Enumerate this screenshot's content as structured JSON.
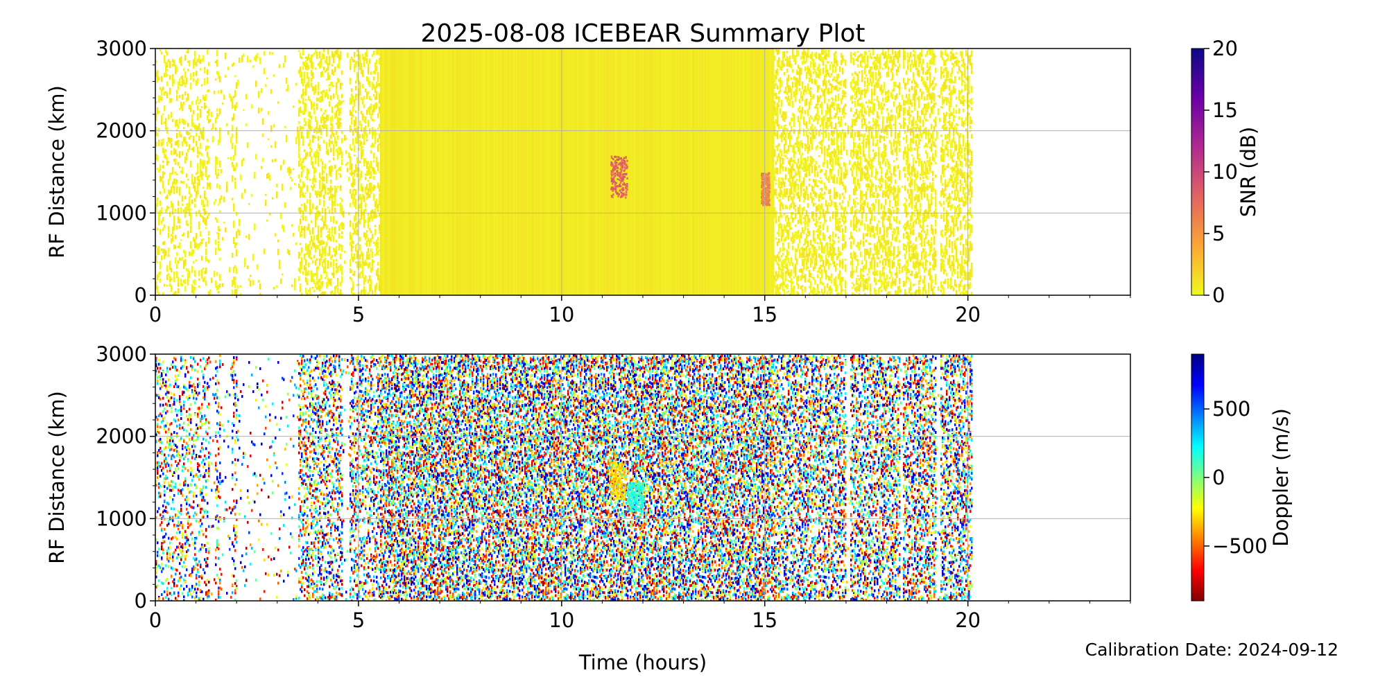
{
  "title": "2025-08-08 ICEBEAR Summary Plot",
  "calibration_text": "Calibration Date: 2024-09-12",
  "chart_data": [
    {
      "type": "scatter",
      "panel": "snr",
      "title": "2025-08-08 ICEBEAR Summary Plot",
      "xlabel": "Time (hours)",
      "ylabel": "RF Distance (km)",
      "xlim": [
        0,
        24
      ],
      "ylim": [
        0,
        3000
      ],
      "xticks": [
        0,
        5,
        10,
        15,
        20
      ],
      "xtick_labels": [
        "0",
        "5",
        "10",
        "15",
        "20"
      ],
      "yticks": [
        0,
        1000,
        2000,
        3000
      ],
      "ytick_labels": [
        "0",
        "1000",
        "2000",
        "3000"
      ],
      "grid": true,
      "data_time_range": [
        0,
        20.1
      ],
      "sparse_intervals": [
        [
          1.3,
          1.45
        ],
        [
          1.6,
          1.85
        ],
        [
          2.0,
          3.5
        ],
        [
          4.6,
          4.75
        ],
        [
          17.0,
          17.1
        ],
        [
          18.3,
          18.4
        ],
        [
          19.2,
          19.3
        ]
      ],
      "colorbar": {
        "label": "SNR (dB)",
        "range": [
          0,
          20
        ],
        "ticks": [
          0,
          5,
          10,
          15,
          20
        ],
        "tick_labels": [
          "0",
          "5",
          "10",
          "15",
          "20"
        ],
        "colormap": "plasma_r",
        "colors": [
          "#f0f921",
          "#fca636",
          "#e16462",
          "#b12a90",
          "#6a00a8",
          "#0d0887"
        ]
      },
      "dominant_value": 0,
      "features": [
        {
          "x": [
            11.2,
            11.6
          ],
          "y": [
            1200,
            1700
          ],
          "value": 8
        },
        {
          "x": [
            14.9,
            15.1
          ],
          "y": [
            1100,
            1500
          ],
          "value": 6
        }
      ]
    },
    {
      "type": "scatter",
      "panel": "doppler",
      "xlabel": "Time (hours)",
      "ylabel": "RF Distance (km)",
      "xlim": [
        0,
        24
      ],
      "ylim": [
        0,
        3000
      ],
      "xticks": [
        0,
        5,
        10,
        15,
        20
      ],
      "xtick_labels": [
        "0",
        "5",
        "10",
        "15",
        "20"
      ],
      "yticks": [
        0,
        1000,
        2000,
        3000
      ],
      "ytick_labels": [
        "0",
        "1000",
        "2000",
        "3000"
      ],
      "grid": true,
      "data_time_range": [
        0,
        20.1
      ],
      "colorbar": {
        "label": "Doppler (m/s)",
        "range": [
          -900,
          900
        ],
        "ticks": [
          -500,
          0,
          500
        ],
        "tick_labels": [
          "−500",
          "0",
          "500"
        ],
        "colormap": "jet_r",
        "colors": [
          "#7f0000",
          "#ff0000",
          "#ff8000",
          "#ffff00",
          "#80ff80",
          "#00ffff",
          "#0080ff",
          "#0000ff",
          "#00007f"
        ]
      },
      "features": [
        {
          "x": [
            11.2,
            11.55
          ],
          "y": [
            1250,
            1700
          ],
          "value": -300
        },
        {
          "x": [
            11.6,
            12.0
          ],
          "y": [
            1100,
            1450
          ],
          "value": 150
        }
      ]
    }
  ]
}
